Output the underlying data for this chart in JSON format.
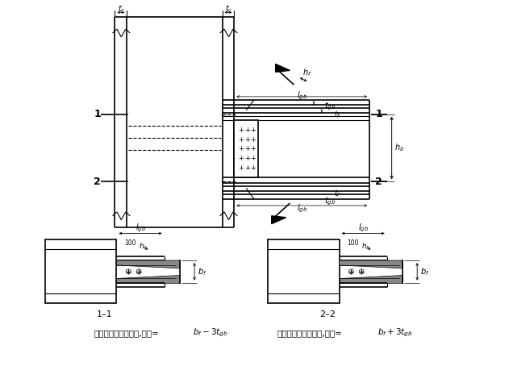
{
  "bg_color": "#ffffff",
  "line_color": "#000000",
  "fig_width": 6.36,
  "fig_height": 4.54,
  "dpi": 100,
  "caption_left": "在上翅缘加橔形盖板,板宽=",
  "caption_right": "在下翅缘加橔形盖板,板宽="
}
